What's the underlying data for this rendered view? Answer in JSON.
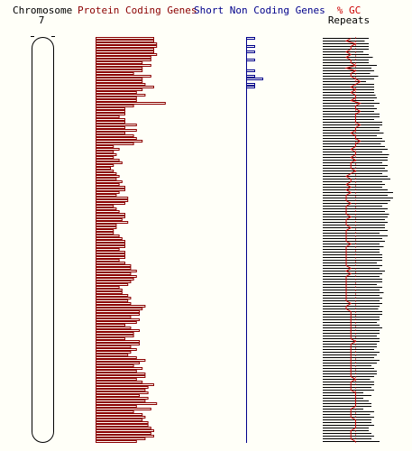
{
  "headers": {
    "chromosome_label": "Chromosome",
    "chromosome_number": "7",
    "protein_coding_label": "Protein Coding Genes",
    "short_non_coding_label": "Short Non Coding Genes",
    "gc_label": "% GC",
    "repeats_label": "Repeats"
  },
  "colors": {
    "protein_coding": "#8b0000",
    "short_non_coding": "#00008b",
    "gc": "#cc0000",
    "repeats": "#000000",
    "chromosome_outline": "#000000",
    "background": "#fffff8"
  },
  "chart_data": {
    "type": "bar",
    "orientation": "horizontal",
    "bins": 150,
    "protein_coding": [
      20,
      20,
      21,
      21,
      20,
      20,
      21,
      19,
      19,
      16,
      19,
      16,
      16,
      13,
      19,
      16,
      16,
      17,
      20,
      16,
      14,
      17,
      14,
      14,
      24,
      13,
      10,
      10,
      10,
      8,
      10,
      10,
      14,
      10,
      14,
      10,
      13,
      14,
      16,
      13,
      6,
      8,
      6,
      7,
      6,
      8,
      9,
      6,
      5,
      6,
      7,
      8,
      7,
      9,
      8,
      10,
      10,
      8,
      7,
      11,
      11,
      10,
      6,
      7,
      8,
      10,
      10,
      9,
      11,
      7,
      7,
      6,
      6,
      8,
      9,
      10,
      10,
      10,
      8,
      10,
      10,
      10,
      8,
      10,
      12,
      12,
      14,
      12,
      14,
      13,
      12,
      11,
      8,
      9,
      9,
      11,
      12,
      11,
      12,
      17,
      16,
      15,
      15,
      12,
      15,
      14,
      10,
      12,
      15,
      13,
      13,
      10,
      15,
      15,
      12,
      14,
      12,
      11,
      14,
      17,
      15,
      13,
      16,
      14,
      17,
      17,
      14,
      16,
      20,
      18,
      17,
      18,
      15,
      18,
      17,
      21,
      14,
      19,
      13,
      16,
      17,
      16,
      18,
      18,
      19,
      20,
      19,
      20,
      17,
      14
    ],
    "short_non_coding": [
      1,
      0,
      0,
      1,
      0,
      1,
      0,
      0,
      1,
      0,
      0,
      0,
      1,
      0,
      1,
      2,
      0,
      1,
      1,
      0,
      0,
      0,
      0,
      0,
      0,
      0,
      0,
      0,
      0,
      0,
      0,
      0,
      0,
      0,
      0,
      0,
      0,
      0,
      0,
      0,
      0,
      0,
      0,
      0,
      0,
      0,
      0,
      0,
      0,
      0,
      0,
      0,
      0,
      0,
      0,
      0,
      0,
      0,
      0,
      0,
      0,
      0,
      0,
      0,
      0,
      0,
      0,
      0,
      0,
      0,
      0,
      0,
      0,
      0,
      0,
      0,
      0,
      0,
      0,
      0,
      0,
      0,
      0,
      0,
      0,
      0,
      0,
      0,
      0,
      0,
      0,
      0,
      0,
      0,
      0,
      0,
      0,
      0,
      0,
      0,
      0,
      0,
      0,
      0,
      0,
      0,
      0,
      0,
      0,
      0,
      0,
      0,
      0,
      0,
      0,
      0,
      0,
      0,
      0,
      0,
      0,
      0,
      0,
      0,
      0,
      0,
      0,
      0,
      0,
      0,
      0,
      0,
      0,
      0,
      0,
      0,
      0,
      0,
      0,
      0,
      0,
      0,
      0,
      0,
      0,
      0,
      0,
      0,
      0,
      0
    ],
    "repeats": [
      34,
      31,
      34,
      34,
      34,
      30,
      34,
      37,
      34,
      34,
      40,
      36,
      38,
      35,
      41,
      38,
      32,
      38,
      38,
      38,
      38,
      39,
      40,
      38,
      42,
      38,
      40,
      38,
      42,
      42,
      38,
      44,
      44,
      42,
      42,
      45,
      40,
      44,
      46,
      43,
      46,
      48,
      44,
      49,
      48,
      48,
      44,
      48,
      46,
      48,
      44,
      48,
      50,
      44,
      46,
      44,
      48,
      52,
      48,
      52,
      50,
      48,
      44,
      48,
      46,
      49,
      48,
      46,
      48,
      46,
      46,
      48,
      42,
      48,
      44,
      46,
      42,
      45,
      42,
      42,
      44,
      44,
      44,
      40,
      44,
      42,
      46,
      44,
      42,
      44,
      44,
      40,
      44,
      42,
      45,
      42,
      44,
      42,
      44,
      42,
      41,
      44,
      44,
      42,
      42,
      40,
      42,
      44,
      42,
      42,
      40,
      42,
      42,
      40,
      40,
      38,
      42,
      40,
      38,
      42,
      40,
      36,
      38,
      40,
      40,
      38,
      35,
      38,
      38,
      36,
      38,
      30,
      36,
      30,
      34,
      36,
      36,
      30,
      38,
      35,
      38,
      36,
      36,
      38,
      34,
      34,
      36,
      38,
      36,
      42
    ],
    "gc_percent": [
      41,
      40,
      42,
      41,
      41,
      40,
      41,
      40,
      41,
      41,
      42,
      40,
      42,
      41,
      41,
      42,
      43,
      42,
      41,
      42,
      41,
      42,
      42,
      41,
      43,
      42,
      42,
      43,
      42,
      42,
      42,
      42,
      43,
      42,
      42,
      41,
      42,
      42,
      43,
      42,
      42,
      41,
      42,
      42,
      41,
      42,
      41,
      41,
      41,
      42,
      41,
      40,
      41,
      41,
      40,
      41,
      40,
      41,
      40,
      40,
      40,
      41,
      40,
      40,
      40,
      40,
      41,
      40,
      40,
      40,
      41,
      40,
      40,
      40,
      40,
      40,
      41,
      40,
      40,
      40,
      40,
      40,
      40,
      40,
      40,
      41,
      40,
      41,
      40,
      40,
      40,
      40,
      40,
      40,
      40,
      40,
      40,
      40,
      41,
      40,
      40,
      41,
      41,
      41,
      41,
      41,
      41,
      41,
      41,
      41,
      41,
      41,
      42,
      41,
      41,
      41,
      41,
      41,
      41,
      41,
      41,
      41,
      41,
      41,
      41,
      41,
      42,
      41,
      41,
      41,
      41,
      42,
      42,
      42,
      42,
      42,
      42,
      41,
      41,
      41,
      41,
      42,
      42,
      42,
      42,
      41,
      41,
      41,
      41,
      42
    ],
    "gc_reference": 42
  }
}
